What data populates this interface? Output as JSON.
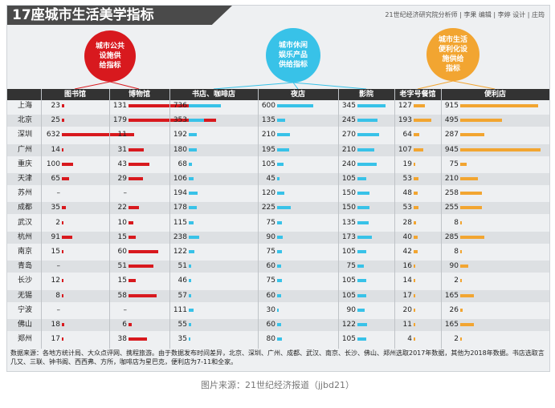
{
  "title": "17座城市生活美学指标",
  "credits": "21世纪经济研究院分析师 | 李果    编辑 | 李婷    设计 | 庄筠",
  "bubbles": [
    {
      "label": "城市公共\n设施供\n给指标",
      "color": "#d8191e"
    },
    {
      "label": "城市休闲\n娱乐产品\n供给指标",
      "color": "#38c2e8"
    },
    {
      "label": "城市生活\n便利化设\n施供给\n指标",
      "color": "#f2a531"
    }
  ],
  "note": "数据来源：各地方统计局、大众点评网、携程旅游。由于数据发布时间差异，北京、深圳、广州、成都、武汉、南京、长沙、佛山、郑州选取2017年数据，其他为2018年数据。书店选取言几又、三联、钟书阁、西西弗、方所，咖啡店为星巴克，便利店为7-11和全家。",
  "caption": "图片来源：21世纪经济报道（jjbd21）",
  "chart_data": {
    "type": "table",
    "title": "17座城市生活美学指标",
    "rows": [
      "上海",
      "北京",
      "深圳",
      "广州",
      "重庆",
      "天津",
      "苏州",
      "成都",
      "武汉",
      "杭州",
      "南京",
      "青岛",
      "长沙",
      "无锡",
      "宁波",
      "佛山",
      "郑州"
    ],
    "columns": [
      {
        "name": "图书馆",
        "group": 0,
        "color": "#d8191e",
        "values": [
          23,
          25,
          632,
          14,
          100,
          65,
          null,
          35,
          2,
          91,
          15,
          null,
          12,
          8,
          null,
          18,
          17
        ]
      },
      {
        "name": "博物馆",
        "group": 0,
        "color": "#d8191e",
        "values": [
          131,
          179,
          11,
          31,
          43,
          29,
          null,
          22,
          10,
          15,
          60,
          51,
          15,
          58,
          null,
          6,
          38
        ]
      },
      {
        "name": "书店、咖啡店",
        "group": 1,
        "color": "#38c2e8",
        "values": [
          736,
          353,
          192,
          180,
          68,
          106,
          194,
          178,
          115,
          238,
          122,
          51,
          46,
          57,
          111,
          55,
          35
        ]
      },
      {
        "name": "夜店",
        "group": 1,
        "color": "#38c2e8",
        "values": [
          600,
          135,
          210,
          195,
          105,
          45,
          120,
          225,
          75,
          90,
          75,
          60,
          75,
          60,
          30,
          60,
          80
        ]
      },
      {
        "name": "影院",
        "group": 1,
        "color": "#38c2e8",
        "values": [
          345,
          245,
          270,
          210,
          240,
          105,
          150,
          150,
          135,
          173,
          105,
          75,
          105,
          105,
          90,
          122,
          105
        ]
      },
      {
        "name": "老字号餐馆",
        "group": 2,
        "color": "#f2a531",
        "values": [
          127,
          193,
          64,
          107,
          19,
          53,
          48,
          53,
          28,
          40,
          42,
          16,
          14,
          17,
          20,
          11,
          4
        ]
      },
      {
        "name": "便利店",
        "group": 2,
        "color": "#f2a531",
        "values": [
          915,
          495,
          287,
          945,
          75,
          210,
          258,
          255,
          8,
          285,
          8,
          90,
          2,
          165,
          26,
          165,
          2
        ]
      }
    ],
    "missing_mark": "–"
  }
}
